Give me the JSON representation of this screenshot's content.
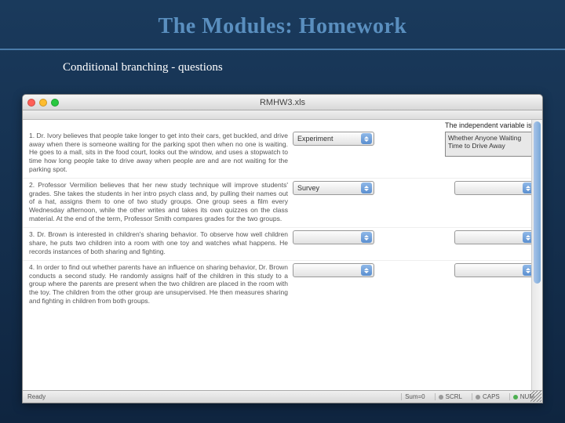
{
  "slide": {
    "title": "The Modules: Homework",
    "subtitle": "Conditional branching - questions",
    "title_color": "#5a8fbf",
    "bg_gradient_top": "#1a3a5c",
    "bg_gradient_bottom": "#0f2540"
  },
  "window": {
    "title": "RMHW3.xls",
    "header_right": "The independent variable is:",
    "questions": [
      {
        "text": "1. Dr. Ivory believes that people take longer to get into their cars, get buckled, and drive away when there is someone waiting for the parking spot then when no one is waiting. He goes to a mall, sits in the food court, looks out the window, and uses a stopwatch to time how long people take to drive away when people are and are not waiting for the parking spot.",
        "dropdown_value": "Experiment",
        "answer": "Whether Anyone Waiting Time to Drive Away",
        "show_answer": true
      },
      {
        "text": "2. Professor Vermilion believes that her new study technique will improve students' grades. She takes the students in her intro psych class and, by pulling their names out of a hat, assigns them to one of two study groups. One group sees a film every Wednesday afternoon, while the other writes and takes its own quizzes on the class material. At the end of the term, Professor Smith compares grades for the two groups.",
        "dropdown_value": "Survey",
        "answer": "",
        "show_answer": false
      },
      {
        "text": "3. Dr. Brown is interested in children's sharing behavior. To observe how well children share, he puts two children into a room with one toy and watches what happens. He records instances of both sharing and fighting.",
        "dropdown_value": "",
        "answer": "",
        "show_answer": false
      },
      {
        "text": "4. In order to find out whether parents have an influence on sharing behavior, Dr. Brown conducts a second study. He randomly assigns half of the children in this study to a group where the parents are present when the two children are placed in the room with the toy. The children from the other group are unsupervised. He then measures sharing and fighting in children from both groups.",
        "dropdown_value": "",
        "answer": "",
        "show_answer": false
      }
    ],
    "statusbar": {
      "ready": "Ready",
      "sum": "Sum=0",
      "scrl": "SCRL",
      "caps": "CAPS",
      "num": "NUM"
    }
  }
}
